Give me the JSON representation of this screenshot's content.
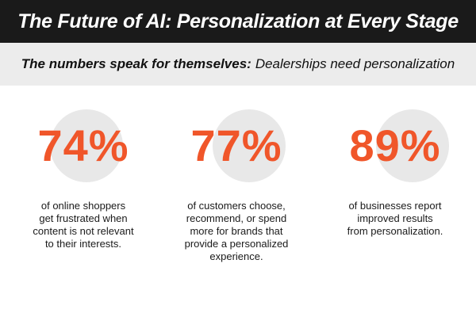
{
  "header": {
    "title": "The Future of AI: Personalization at Every Stage",
    "subtitle_bold": "The numbers speak for themselves:",
    "subtitle_rest": "Dealerships need personalization"
  },
  "colors": {
    "accent": "#f0562a",
    "title_bar": "#1a1a1a",
    "subtitle_bar": "#ececec",
    "circle": "#e8e8e8"
  },
  "stats": [
    {
      "value": "74%",
      "lines": [
        "of online shoppers",
        "get frustrated when",
        "content is not relevant",
        "to their interests."
      ]
    },
    {
      "value": "77%",
      "lines": [
        "of customers choose,",
        "recommend, or spend",
        "more for brands that",
        "provide a personalized",
        "experience."
      ]
    },
    {
      "value": "89%",
      "lines": [
        "of businesses report",
        "improved results",
        "from personalization."
      ]
    }
  ]
}
